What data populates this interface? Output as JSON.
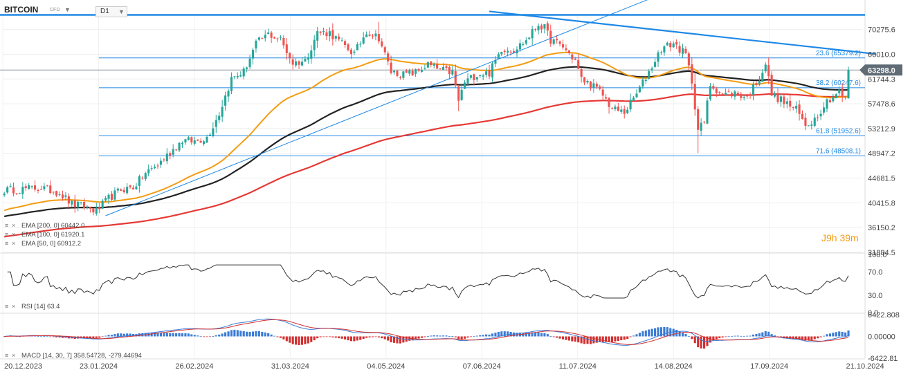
{
  "header": {
    "symbol": "BITCOIN",
    "symbol_type": "CFD",
    "timeframe": "D1"
  },
  "timer_text": "J9h 39m",
  "current_price_label": "63298.0",
  "colors": {
    "up": "#26a69a",
    "down": "#ef5350",
    "ema200": "#e53935",
    "ema100": "#222222",
    "ema50": "#f39c12",
    "trendline": "#1e88e5",
    "fib": "#1e88e5",
    "price_tag": "#5f6b75",
    "rsi": "#333333",
    "macd_line": "#3a7bd5",
    "macd_signal": "#d32f2f"
  },
  "chart_data": [
    {
      "type": "candlestick",
      "title": "BITCOIN",
      "timeframe": "D1",
      "x_ticks": [
        "20.12.2023",
        "23.01.2024",
        "26.02.2024",
        "31.03.2024",
        "04.05.2024",
        "07.06.2024",
        "11.07.2024",
        "14.08.2024",
        "17.09.2024",
        "21.10.2024"
      ],
      "y_ticks": [
        "70275.6",
        "66010.0",
        "61744.3",
        "57478.6",
        "53212.9",
        "48947.2",
        "44681.5",
        "40415.8",
        "36150.2",
        "31884.5"
      ],
      "ylim": [
        31884.5,
        72500
      ],
      "last_price": 63298.0,
      "close_path": [
        [
          0,
          42600
        ],
        [
          12,
          43000
        ],
        [
          18,
          42200
        ],
        [
          22,
          40200
        ],
        [
          26,
          39800
        ],
        [
          30,
          39000
        ],
        [
          34,
          41200
        ],
        [
          38,
          42700
        ],
        [
          42,
          43100
        ],
        [
          46,
          45500
        ],
        [
          50,
          47000
        ],
        [
          54,
          49100
        ],
        [
          58,
          51200
        ],
        [
          62,
          51000
        ],
        [
          66,
          51700
        ],
        [
          70,
          55800
        ],
        [
          74,
          61800
        ],
        [
          78,
          63000
        ],
        [
          82,
          67800
        ],
        [
          86,
          69500
        ],
        [
          90,
          68500
        ],
        [
          94,
          64500
        ],
        [
          98,
          64900
        ],
        [
          102,
          69800
        ],
        [
          106,
          69700
        ],
        [
          110,
          67800
        ],
        [
          114,
          66100
        ],
        [
          118,
          70000
        ],
        [
          122,
          68900
        ],
        [
          126,
          63000
        ],
        [
          130,
          62500
        ],
        [
          134,
          62900
        ],
        [
          138,
          64200
        ],
        [
          142,
          63300
        ],
        [
          146,
          62900
        ],
        [
          148,
          58000
        ],
        [
          150,
          61200
        ],
        [
          154,
          62600
        ],
        [
          158,
          62800
        ],
        [
          162,
          67000
        ],
        [
          166,
          66800
        ],
        [
          170,
          68400
        ],
        [
          174,
          71200
        ],
        [
          176,
          70500
        ],
        [
          178,
          68500
        ],
        [
          182,
          67300
        ],
        [
          186,
          64900
        ],
        [
          188,
          61700
        ],
        [
          192,
          60500
        ],
        [
          195,
          59000
        ],
        [
          198,
          56600
        ],
        [
          202,
          56000
        ],
        [
          206,
          59200
        ],
        [
          210,
          63000
        ],
        [
          214,
          67000
        ],
        [
          218,
          67900
        ],
        [
          222,
          65900
        ],
        [
          224,
          61400
        ],
        [
          226,
          53000
        ],
        [
          228,
          54300
        ],
        [
          230,
          60800
        ],
        [
          234,
          59100
        ],
        [
          238,
          59300
        ],
        [
          242,
          58600
        ],
        [
          246,
          62000
        ],
        [
          248,
          64400
        ],
        [
          250,
          59100
        ],
        [
          254,
          57800
        ],
        [
          258,
          56500
        ],
        [
          261,
          53800
        ],
        [
          264,
          54900
        ],
        [
          268,
          58000
        ],
        [
          272,
          59600
        ],
        [
          274,
          58200
        ],
        [
          275,
          63300
        ]
      ],
      "indicators": {
        "legend": [
          {
            "label": "EMA [200, 0]",
            "value": "60442.0"
          },
          {
            "label": "EMA [100, 0]",
            "value": "61920.1"
          },
          {
            "label": "EMA [50, 0]",
            "value": "60912.2"
          }
        ]
      },
      "trendlines": [
        {
          "from": [
            33,
            38200
          ],
          "to": [
            210,
            75500
          ]
        },
        {
          "from": [
            158,
            73400
          ],
          "to": [
            284,
            66050
          ]
        }
      ],
      "horizontal_lines": [
        {
          "label": "",
          "value": 72800,
          "style": "thick"
        },
        {
          "label": "",
          "value": 63298.0,
          "style": "thin-gray"
        },
        {
          "label": "23.6 (65379.2)",
          "value": 65379.2
        },
        {
          "label": "38.2 (60247.6)",
          "value": 60247.6
        },
        {
          "label": "61.8 (51952.6)",
          "value": 51952.6
        },
        {
          "label": "71.6 (48508.1)",
          "value": 48508.1
        }
      ]
    },
    {
      "type": "line",
      "title": "RSI",
      "legend": {
        "label": "RSI [14]",
        "value": "63.4"
      },
      "y_ticks": [
        "100.0",
        "70.0",
        "30.0",
        "0.0"
      ],
      "ylim": [
        0,
        100
      ],
      "last_value": 63.4
    },
    {
      "type": "bar+line",
      "title": "MACD",
      "legend": {
        "label": "MACD [14, 30, 7]",
        "values": "358.54728, -279.44694"
      },
      "y_ticks": [
        "6422.808",
        "0.00000",
        "-6422.81"
      ],
      "ylim": [
        -6422.81,
        6422.808
      ],
      "last_values": [
        358.54728,
        -279.44694
      ]
    }
  ]
}
